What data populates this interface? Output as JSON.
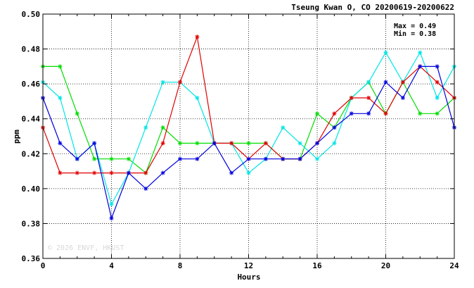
{
  "header": {
    "title": "Tseung Kwan O, CO 20200619-20200622"
  },
  "stats": {
    "max_label": "Max = 0.49",
    "min_label": "Min = 0.38"
  },
  "watermark": "© 2026  ENVF, HKUST",
  "chart_data": {
    "type": "line",
    "title": "Tseung Kwan O, CO 20200619-20200622",
    "xlabel": "Hours",
    "ylabel": "ppm",
    "xlim": [
      0,
      24
    ],
    "ylim": [
      0.36,
      0.5
    ],
    "xticks": [
      0,
      4,
      8,
      12,
      16,
      20,
      24
    ],
    "yticks": [
      0.36,
      0.38,
      0.4,
      0.42,
      0.44,
      0.46,
      0.48,
      0.5
    ],
    "grid": true,
    "x": [
      0,
      1,
      2,
      3,
      4,
      5,
      6,
      7,
      8,
      9,
      10,
      11,
      12,
      13,
      14,
      15,
      16,
      17,
      18,
      19,
      20,
      21,
      22,
      23,
      24
    ],
    "series": [
      {
        "color": "#00dd00",
        "values": [
          0.47,
          0.47,
          0.443,
          0.417,
          0.417,
          0.417,
          0.409,
          0.435,
          0.426,
          0.426,
          0.426,
          0.426,
          0.426,
          0.426,
          0.417,
          0.417,
          0.443,
          0.435,
          0.452,
          0.461,
          0.443,
          0.461,
          0.443,
          0.443,
          0.452
        ]
      },
      {
        "color": "#00e5e5",
        "values": [
          0.461,
          0.452,
          0.417,
          0.426,
          0.391,
          0.409,
          0.435,
          0.461,
          0.461,
          0.452,
          0.426,
          0.426,
          0.409,
          0.417,
          0.435,
          0.426,
          0.417,
          0.426,
          0.452,
          0.461,
          0.478,
          0.461,
          0.478,
          0.452,
          0.47
        ]
      },
      {
        "color": "#e00000",
        "values": [
          0.435,
          0.409,
          0.409,
          0.409,
          0.409,
          0.409,
          0.409,
          0.426,
          0.461,
          0.487,
          0.426,
          0.426,
          0.417,
          0.426,
          0.417,
          0.417,
          0.426,
          0.443,
          0.452,
          0.452,
          0.443,
          0.461,
          0.47,
          0.461,
          0.452
        ]
      },
      {
        "color": "#0000dd",
        "values": [
          0.452,
          0.426,
          0.417,
          0.426,
          0.383,
          0.409,
          0.4,
          0.409,
          0.417,
          0.417,
          0.426,
          0.409,
          0.417,
          0.417,
          0.417,
          0.417,
          0.426,
          0.435,
          0.443,
          0.443,
          0.461,
          0.452,
          0.47,
          0.47,
          0.435
        ]
      }
    ]
  }
}
